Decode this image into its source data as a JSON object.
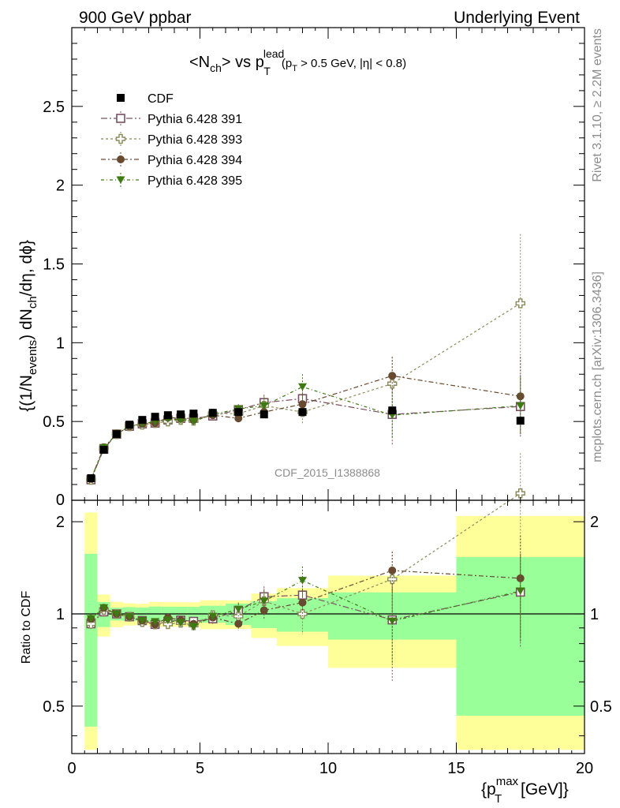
{
  "header": {
    "left": "900 GeV ppbar",
    "right": "Underlying Event"
  },
  "side": {
    "rivet": "Rivet 3.1.10, ≥ 2.2M events",
    "mcplots": "mcplots.cern.ch [arXiv:1306.3436]"
  },
  "watermark": "CDF_2015_I1388868",
  "title": {
    "lhs_a": "<N",
    "lhs_sub": "ch",
    "lhs_b": "> vs p",
    "p_sup": "lead",
    "p_sub": "T",
    "cut": "(p",
    "cut_sub": "T",
    "cut_rest": " > 0.5 GeV, |η| < 0.8)"
  },
  "ylabel": {
    "a": "{(1/N",
    "sub1": "events",
    "b": ") dN",
    "sub2": "ch",
    "c": "/dη, dϕ}"
  },
  "ratio_ylabel": "Ratio to CDF",
  "xlabel": {
    "a": "{p",
    "sup": "max",
    "sub": "T",
    "b": " [GeV]}"
  },
  "legend": [
    {
      "label": "CDF",
      "marker": "square-filled",
      "color": "#000000"
    },
    {
      "label": "Pythia 6.428 391",
      "marker": "square-open",
      "color": "#7a5060"
    },
    {
      "label": "Pythia 6.428 393",
      "marker": "cross-open",
      "color": "#8a8a5a"
    },
    {
      "label": "Pythia 6.428 394",
      "marker": "circle-filled",
      "color": "#684a30"
    },
    {
      "label": "Pythia 6.428 395",
      "marker": "triangle-filled",
      "color": "#3d7a10"
    }
  ],
  "chart_data": {
    "type": "scatter",
    "xlim": [
      0,
      20
    ],
    "ylim_main": [
      0,
      3
    ],
    "ylim_ratio": [
      0.35,
      2.35
    ],
    "ratio_scale": "log",
    "x_ticks": [
      "0",
      "5",
      "10",
      "15",
      "20"
    ],
    "y_ticks_main": [
      "0.5",
      "1",
      "1.5",
      "2",
      "2.5"
    ],
    "y_ticks_ratio": [
      "0.5",
      "1",
      "2"
    ],
    "x": [
      0.75,
      1.25,
      1.75,
      2.25,
      2.75,
      3.25,
      3.75,
      4.25,
      4.75,
      5.5,
      6.5,
      7.5,
      9.0,
      12.5,
      17.5
    ],
    "bin_edges": [
      0.5,
      1.0,
      1.5,
      2.0,
      2.5,
      3.0,
      3.5,
      4.0,
      4.5,
      5.0,
      6.0,
      7.0,
      8.0,
      10.0,
      15.0,
      20.0
    ],
    "data": {
      "name": "CDF",
      "values": [
        0.14,
        0.32,
        0.42,
        0.48,
        0.51,
        0.53,
        0.54,
        0.545,
        0.55,
        0.555,
        0.56,
        0.545,
        0.56,
        0.57,
        0.505
      ],
      "band_green": [
        0.08,
        0.03,
        0.02,
        0.025,
        0.025,
        0.03,
        0.03,
        0.03,
        0.03,
        0.035,
        0.045,
        0.055,
        0.07,
        0.1,
        0.27
      ],
      "band_yellow": [
        0.16,
        0.05,
        0.04,
        0.04,
        0.04,
        0.05,
        0.05,
        0.05,
        0.05,
        0.06,
        0.06,
        0.09,
        0.12,
        0.19,
        0.55
      ]
    },
    "series": [
      {
        "name": "Pythia 6.428 391",
        "values": [
          0.13,
          0.325,
          0.42,
          0.47,
          0.485,
          0.49,
          0.51,
          0.52,
          0.52,
          0.535,
          0.575,
          0.62,
          0.645,
          0.545,
          0.595
        ],
        "errors": [
          0.005,
          0.008,
          0.01,
          0.012,
          0.012,
          0.013,
          0.014,
          0.015,
          0.016,
          0.02,
          0.03,
          0.05,
          0.08,
          0.2,
          0.2
        ]
      },
      {
        "name": "Pythia 6.428 393",
        "values": [
          0.13,
          0.33,
          0.42,
          0.47,
          0.48,
          0.49,
          0.5,
          0.51,
          0.505,
          0.55,
          0.55,
          0.6,
          0.56,
          0.74,
          1.25
        ],
        "errors": [
          0.005,
          0.008,
          0.01,
          0.012,
          0.012,
          0.013,
          0.014,
          0.015,
          0.016,
          0.02,
          0.03,
          0.06,
          0.08,
          0.17,
          0.44
        ]
      },
      {
        "name": "Pythia 6.428 394",
        "values": [
          0.135,
          0.335,
          0.42,
          0.47,
          0.485,
          0.49,
          0.525,
          0.52,
          0.51,
          0.54,
          0.52,
          0.56,
          0.61,
          0.79,
          0.66
        ],
        "errors": [
          0.005,
          0.008,
          0.01,
          0.012,
          0.012,
          0.013,
          0.014,
          0.015,
          0.016,
          0.02,
          0.025,
          0.04,
          0.06,
          0.12,
          0.25
        ]
      },
      {
        "name": "Pythia 6.428 395",
        "values": [
          0.135,
          0.335,
          0.42,
          0.47,
          0.485,
          0.5,
          0.515,
          0.51,
          0.5,
          0.545,
          0.58,
          0.6,
          0.72,
          0.54,
          0.6
        ],
        "errors": [
          0.005,
          0.008,
          0.01,
          0.012,
          0.012,
          0.013,
          0.014,
          0.015,
          0.016,
          0.02,
          0.03,
          0.05,
          0.08,
          0.15,
          0.18
        ]
      }
    ]
  }
}
